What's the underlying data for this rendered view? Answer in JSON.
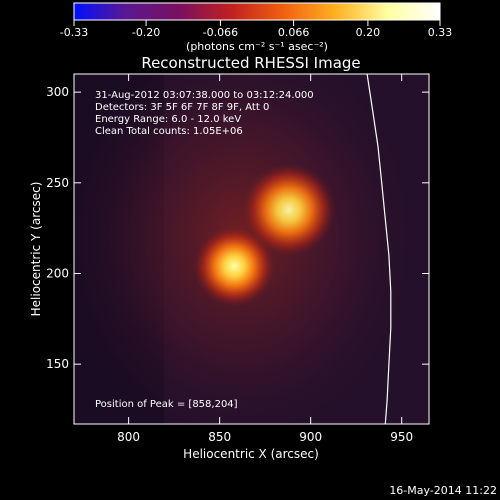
{
  "colorbar": {
    "ticks": [
      "-0.33",
      "-0.20",
      "-0.066",
      "0.066",
      "0.20",
      "0.33"
    ],
    "tick_values": [
      -0.33,
      -0.2,
      -0.066,
      0.066,
      0.2,
      0.33
    ],
    "range": [
      -0.33,
      0.33
    ],
    "units_label": "(photons cm⁻² s⁻¹ asec⁻²)",
    "colors": [
      "#0010ff",
      "#5a1890",
      "#7a1060",
      "#c02020",
      "#f06010",
      "#ffb020",
      "#ffffa0",
      "#ffffff"
    ]
  },
  "chart_data": {
    "type": "heatmap",
    "title": "Reconstructed RHESSI Image",
    "xlabel": "Heliocentric X (arcsec)",
    "ylabel": "Heliocentric Y (arcsec)",
    "xlim": [
      770,
      965
    ],
    "ylim": [
      117,
      310
    ],
    "xticks": [
      800,
      850,
      900,
      950
    ],
    "yticks": [
      150,
      200,
      250,
      300
    ],
    "xtick_labels": [
      "800",
      "850",
      "900",
      "950"
    ],
    "ytick_labels": [
      "150",
      "200",
      "250",
      "300"
    ],
    "sources": [
      {
        "x": 858,
        "y": 204,
        "sigma": 7,
        "amplitude": 1.0
      },
      {
        "x": 888,
        "y": 235,
        "sigma": 8,
        "amplitude": 0.95
      }
    ],
    "background_glow": {
      "x": 862,
      "y": 220,
      "sigma": 45,
      "amplitude": 0.24
    },
    "limb_curve": [
      [
        931,
        310
      ],
      [
        934,
        290
      ],
      [
        937,
        270
      ],
      [
        939,
        250
      ],
      [
        941,
        230
      ],
      [
        943,
        210
      ],
      [
        944,
        190
      ],
      [
        944,
        170
      ],
      [
        943,
        150
      ],
      [
        942,
        130
      ],
      [
        941,
        117
      ]
    ],
    "annotations": [
      "31-Aug-2012 03:07:38.000 to 03:12:24.000",
      "Detectors: 3F 5F 6F 7F 8F 9F, Att 0",
      "Energy Range: 6.0 - 12.0 keV",
      "Clean     Total counts: 1.05E+06"
    ],
    "peak_label": "Position of Peak = [858,204]"
  },
  "footer": {
    "timestamp": "16-May-2014 11:22"
  }
}
